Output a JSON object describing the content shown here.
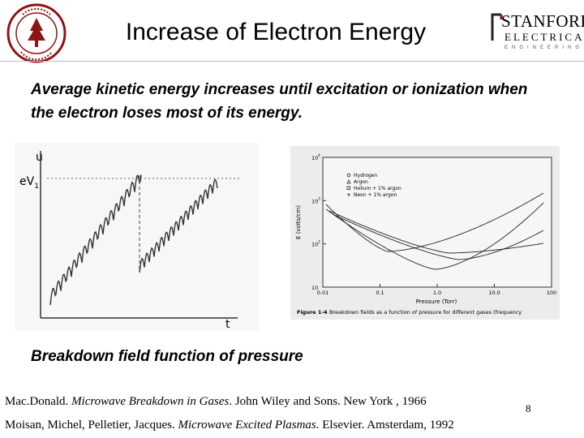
{
  "slide": {
    "title": "Increase of Electron Energy",
    "subtitle": "Average kinetic energy  increases until excitation or ionization when the electron loses most of its energy.",
    "caption": "Breakdown field function of pressure",
    "page_number": "8"
  },
  "logo": {
    "line1": "STANFORD",
    "line2": "ELECTRICAL",
    "line3": "ENGINEERING"
  },
  "sketch": {
    "y_label": "u",
    "threshold_label": "eV",
    "threshold_subscript": "1",
    "x_label": "t"
  },
  "breakdown_plot": {
    "y_label": "E (volts/cm)",
    "x_label": "Pressure (Torr)",
    "y_ticks": [
      "10",
      "10",
      "10",
      "10"
    ],
    "y_tick_exponents": [
      "4",
      "3",
      "2",
      ""
    ],
    "x_ticks": [
      "0.01",
      "0.1",
      "1.0",
      "10.0",
      "100"
    ],
    "legend": [
      "Hydrogen",
      "Argon",
      "Helium + 1% argon",
      "Neon + 1% argon"
    ],
    "figure_caption_label": "Figure 1-4",
    "figure_caption_text": "Breakdown fields as a function of pressure for different gases (frequency"
  },
  "references": {
    "ref1_authors": "Mac.Donald. ",
    "ref1_title": "Microwave Breakdown in Gases",
    "ref1_rest": ". John Wiley and Sons. New York , 1966",
    "ref2_authors": "Moisan, Michel, Pelletier, Jacques. ",
    "ref2_title": "Microwave Excited Plasmas",
    "ref2_rest": ". Elsevier. Amsterdam, 1992"
  }
}
